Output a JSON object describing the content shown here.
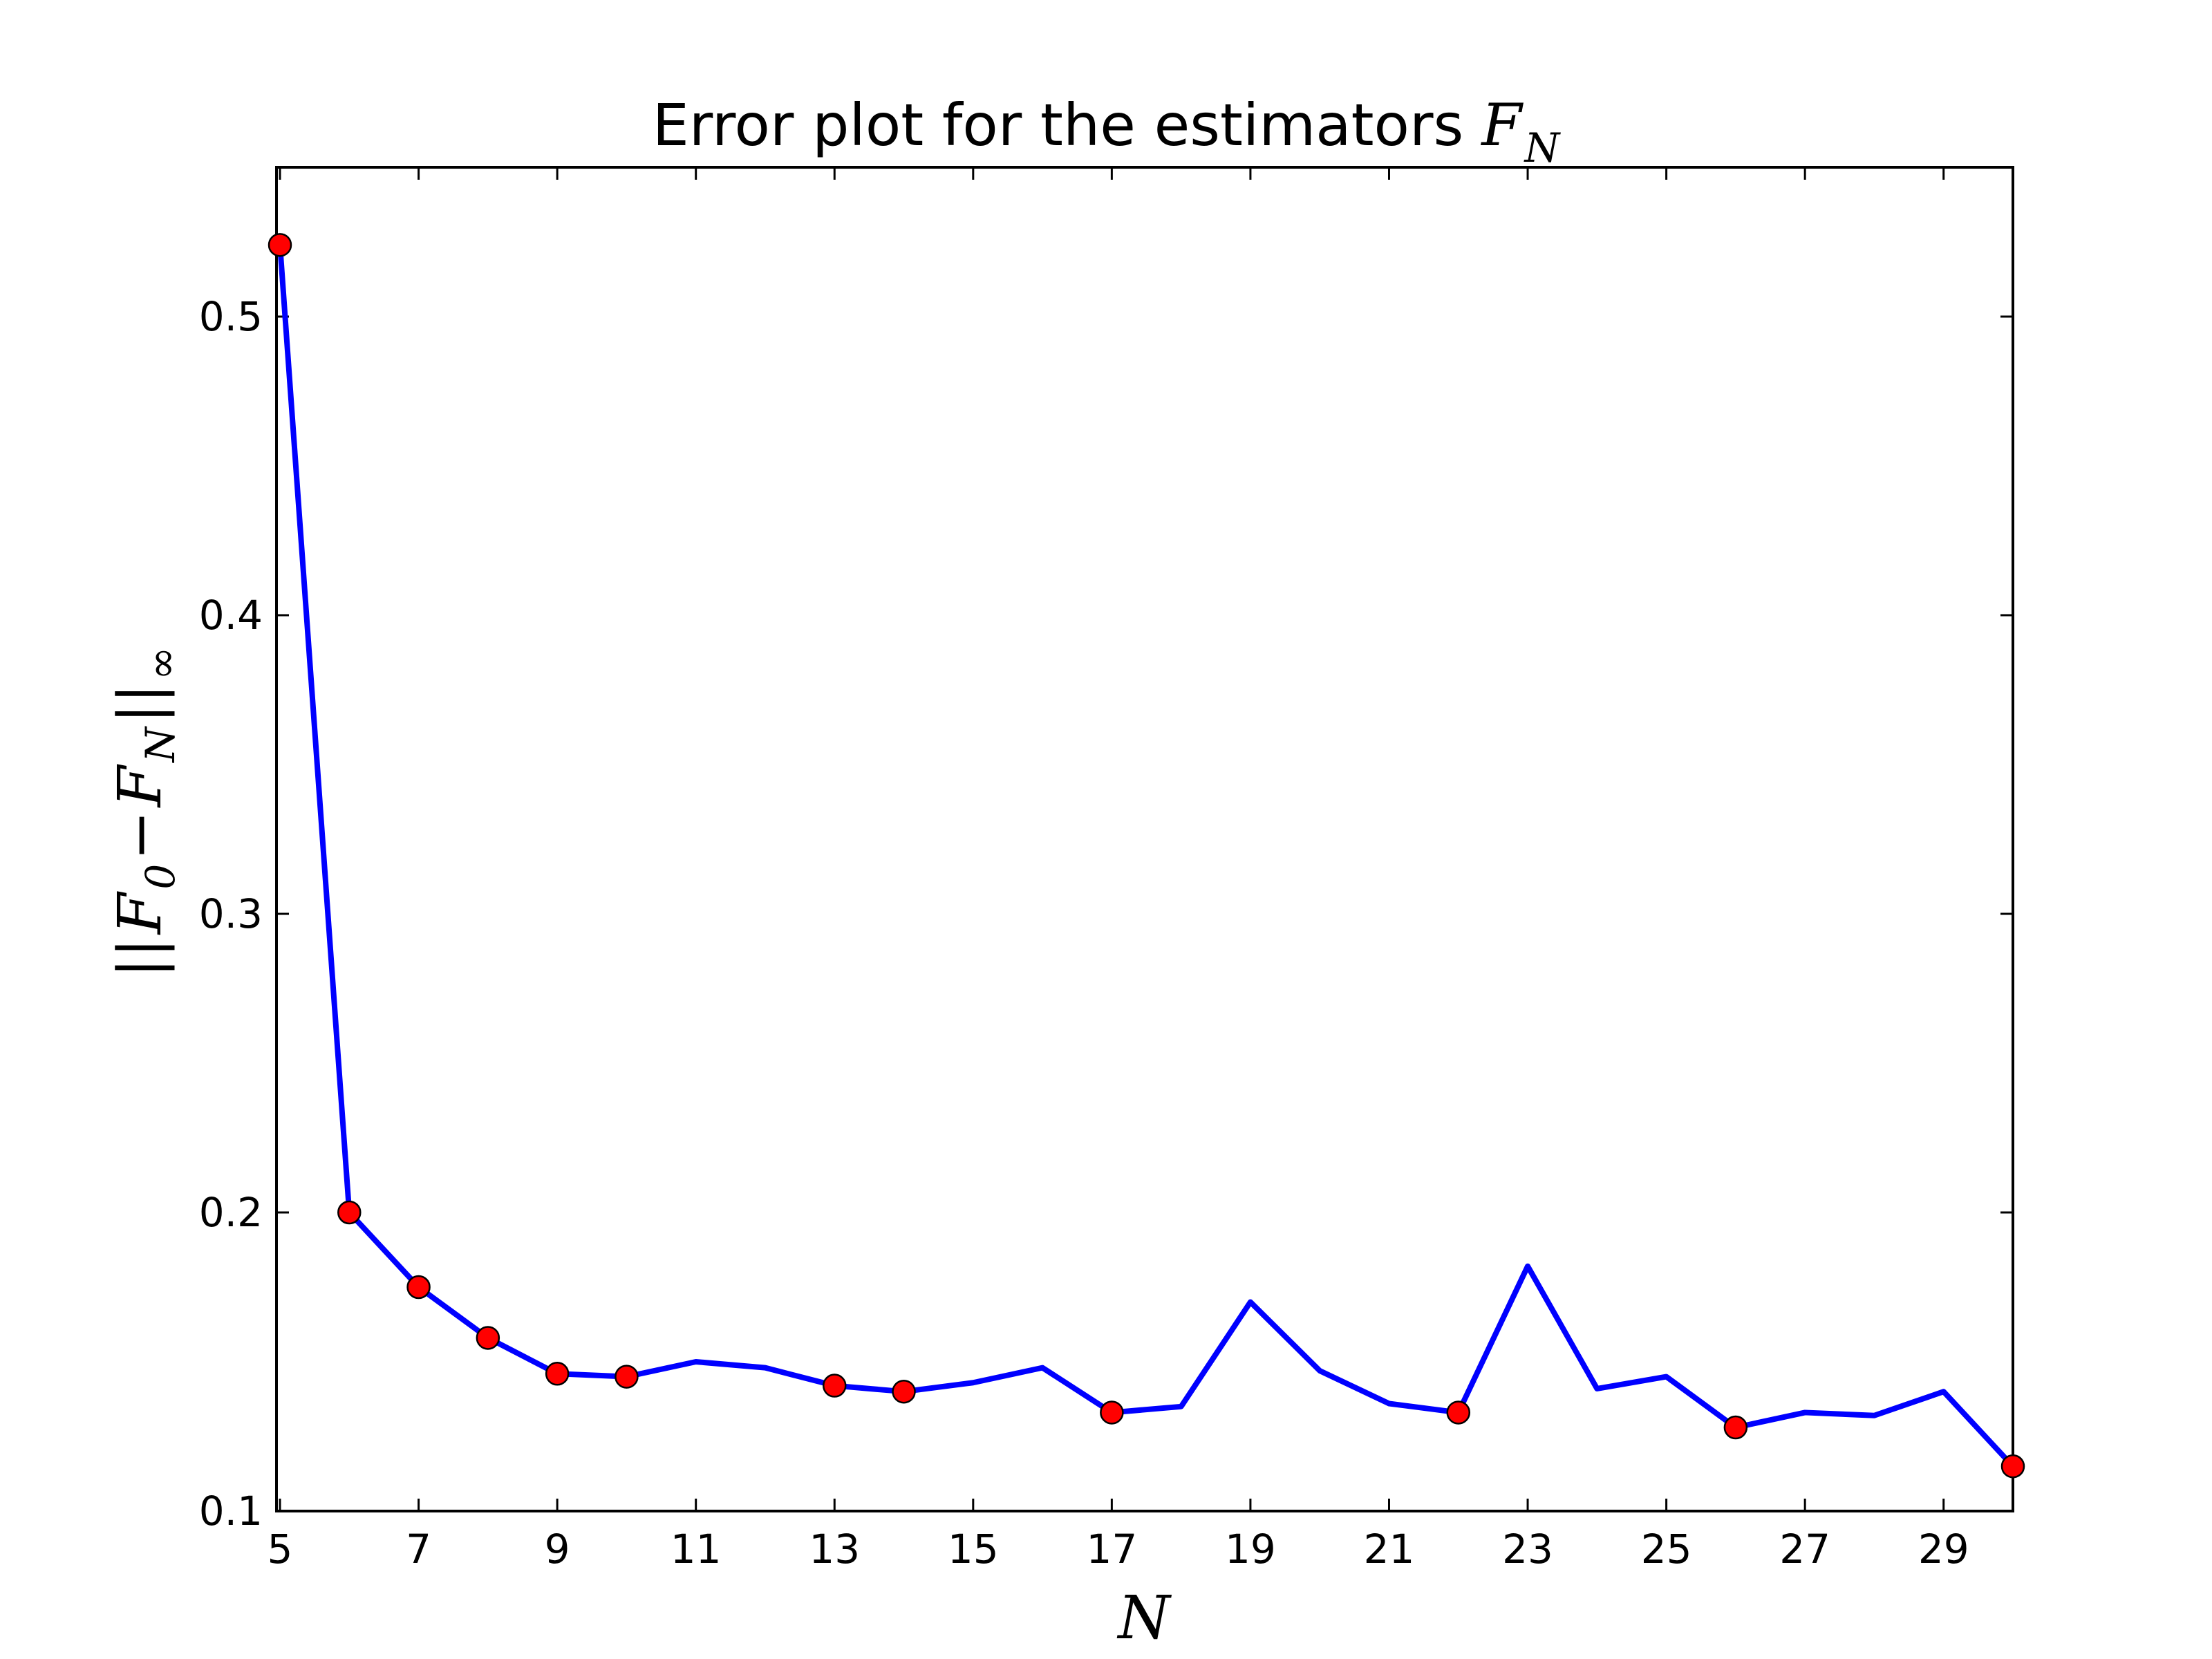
{
  "chart_data": {
    "type": "line",
    "title": "Error plot for the estimators F_N",
    "title_text": "Error plot for the estimators",
    "title_math": {
      "base": "F",
      "sub": "N"
    },
    "xlabel": "N",
    "ylabel": "||F_0 − F_N||_∞",
    "ylabel_parts": {
      "bars": "||",
      "f0": "F",
      "f0_sub": "0",
      "minus": "−",
      "fn": "F",
      "fn_sub": "N",
      "end_sub": "∞"
    },
    "xlim": [
      4.95,
      30
    ],
    "ylim": [
      0.1,
      0.55
    ],
    "xticks": [
      5,
      7,
      9,
      11,
      13,
      15,
      17,
      19,
      21,
      23,
      25,
      27,
      29
    ],
    "xtick_labels": [
      "5",
      "7",
      "9",
      "11",
      "13",
      "15",
      "17",
      "19",
      "21",
      "23",
      "25",
      "27",
      "29"
    ],
    "yticks": [
      0.1,
      0.2,
      0.3,
      0.4,
      0.5
    ],
    "ytick_labels": [
      "0.1",
      "0.2",
      "0.3",
      "0.4",
      "0.5"
    ],
    "grid": false,
    "line_color": "#0000ff",
    "marker_color": "#ff0000",
    "series": [
      {
        "x": [
          5,
          6,
          7,
          8,
          9,
          10,
          11,
          12,
          13,
          14,
          15,
          16,
          17,
          18,
          19,
          20,
          21,
          22,
          23,
          24,
          25,
          26,
          27,
          28,
          29,
          30
        ],
        "y": [
          0.524,
          0.2,
          0.175,
          0.158,
          0.146,
          0.145,
          0.15,
          0.148,
          0.142,
          0.14,
          0.143,
          0.148,
          0.133,
          0.135,
          0.17,
          0.147,
          0.136,
          0.133,
          0.182,
          0.141,
          0.145,
          0.128,
          0.133,
          0.132,
          0.14,
          0.115
        ]
      }
    ],
    "marked_points_x": [
      5,
      6,
      7,
      8,
      9,
      10,
      13,
      14,
      17,
      22,
      26,
      30
    ]
  }
}
